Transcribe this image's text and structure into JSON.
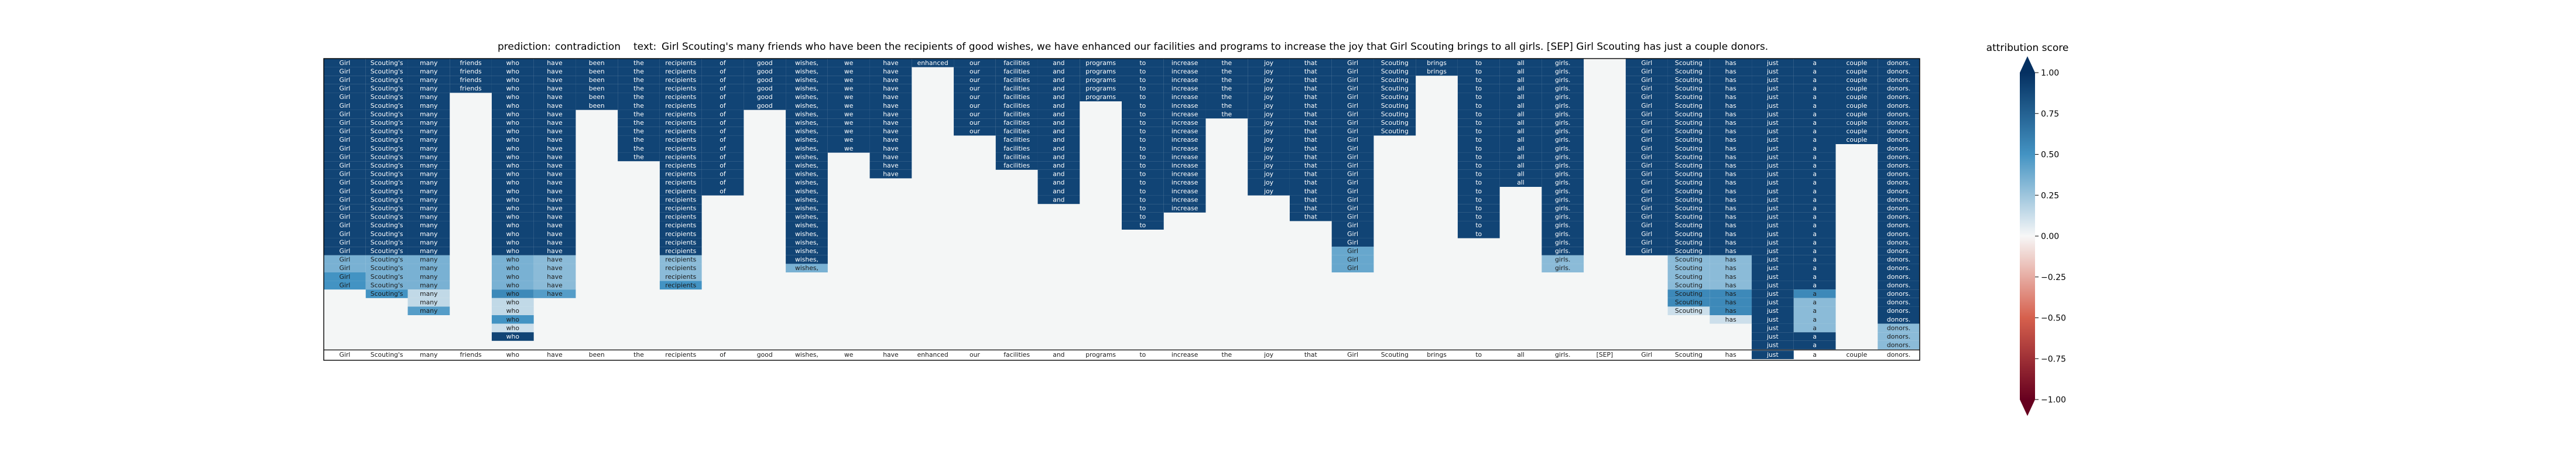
{
  "chart_data": {
    "type": "heatmap",
    "title": {
      "prediction_label": "prediction:",
      "prediction_value": "contradiction",
      "text_label": "text:",
      "text_value": "Girl Scouting's many friends who have been the recipients of good wishes, we have enhanced our facilities and programs to increase the joy that Girl Scouting brings to all girls. [SEP] Girl Scouting has just a couple donors."
    },
    "tokens": [
      "Girl",
      "Scouting's",
      "many",
      "friends",
      "who",
      "have",
      "been",
      "the",
      "recipients",
      "of",
      "good",
      "wishes,",
      "we",
      "have",
      "enhanced",
      "our",
      "facilities",
      "and",
      "programs",
      "to",
      "increase",
      "the",
      "joy",
      "that",
      "Girl",
      "Scouting",
      "brings",
      "to",
      "all",
      "girls.",
      "[SEP]",
      "Girl",
      "Scouting",
      "has",
      "just",
      "a",
      "couple",
      "donors."
    ],
    "rows": 34,
    "columns": [
      {
        "segments": [
          {
            "from": 0,
            "to": 22,
            "score": 0.9
          },
          {
            "from": 23,
            "to": 24,
            "score": 0.35
          },
          {
            "from": 25,
            "to": 26,
            "score": 0.5
          }
        ]
      },
      {
        "segments": [
          {
            "from": 0,
            "to": 22,
            "score": 0.9
          },
          {
            "from": 23,
            "to": 26,
            "score": 0.35
          },
          {
            "from": 27,
            "to": 27,
            "score": 0.5
          }
        ]
      },
      {
        "segments": [
          {
            "from": 0,
            "to": 22,
            "score": 0.9
          },
          {
            "from": 23,
            "to": 26,
            "score": 0.35
          },
          {
            "from": 27,
            "to": 28,
            "score": 0.15
          },
          {
            "from": 29,
            "to": 29,
            "score": 0.45
          }
        ]
      },
      {
        "segments": [
          {
            "from": 0,
            "to": 3,
            "score": 0.9
          }
        ]
      },
      {
        "segments": [
          {
            "from": 0,
            "to": 22,
            "score": 0.9
          },
          {
            "from": 23,
            "to": 26,
            "score": 0.35
          },
          {
            "from": 27,
            "to": 27,
            "score": 0.55
          },
          {
            "from": 28,
            "to": 29,
            "score": 0.15
          },
          {
            "from": 30,
            "to": 30,
            "score": 0.5
          },
          {
            "from": 31,
            "to": 31,
            "score": 0.12
          },
          {
            "from": 32,
            "to": 32,
            "score": 0.9
          }
        ]
      },
      {
        "segments": [
          {
            "from": 0,
            "to": 22,
            "score": 0.9
          },
          {
            "from": 23,
            "to": 26,
            "score": 0.3
          },
          {
            "from": 27,
            "to": 27,
            "score": 0.45
          }
        ]
      },
      {
        "segments": [
          {
            "from": 0,
            "to": 5,
            "score": 0.9
          }
        ]
      },
      {
        "segments": [
          {
            "from": 0,
            "to": 11,
            "score": 0.9
          }
        ]
      },
      {
        "segments": [
          {
            "from": 0,
            "to": 22,
            "score": 0.9
          },
          {
            "from": 23,
            "to": 25,
            "score": 0.3
          },
          {
            "from": 26,
            "to": 26,
            "score": 0.5
          }
        ]
      },
      {
        "segments": [
          {
            "from": 0,
            "to": 15,
            "score": 0.9
          }
        ]
      },
      {
        "segments": [
          {
            "from": 0,
            "to": 5,
            "score": 0.9
          }
        ]
      },
      {
        "segments": [
          {
            "from": 0,
            "to": 23,
            "score": 0.9
          },
          {
            "from": 24,
            "to": 24,
            "score": 0.35
          }
        ]
      },
      {
        "segments": [
          {
            "from": 0,
            "to": 10,
            "score": 0.9
          }
        ]
      },
      {
        "segments": [
          {
            "from": 0,
            "to": 13,
            "score": 0.9
          }
        ]
      },
      {
        "segments": [
          {
            "from": 0,
            "to": 0,
            "score": 0.9
          }
        ]
      },
      {
        "segments": [
          {
            "from": 0,
            "to": 8,
            "score": 0.9
          }
        ]
      },
      {
        "segments": [
          {
            "from": 0,
            "to": 12,
            "score": 0.9
          }
        ]
      },
      {
        "segments": [
          {
            "from": 0,
            "to": 16,
            "score": 0.9
          }
        ]
      },
      {
        "segments": [
          {
            "from": 0,
            "to": 4,
            "score": 0.9
          }
        ]
      },
      {
        "segments": [
          {
            "from": 0,
            "to": 19,
            "score": 0.9
          }
        ]
      },
      {
        "segments": [
          {
            "from": 0,
            "to": 17,
            "score": 0.9
          }
        ]
      },
      {
        "segments": [
          {
            "from": 0,
            "to": 6,
            "score": 0.9
          }
        ]
      },
      {
        "segments": [
          {
            "from": 0,
            "to": 15,
            "score": 0.9
          }
        ]
      },
      {
        "segments": [
          {
            "from": 0,
            "to": 18,
            "score": 0.9
          }
        ]
      },
      {
        "segments": [
          {
            "from": 0,
            "to": 21,
            "score": 0.9
          },
          {
            "from": 22,
            "to": 24,
            "score": 0.4
          }
        ]
      },
      {
        "segments": [
          {
            "from": 0,
            "to": 8,
            "score": 0.9
          }
        ]
      },
      {
        "segments": [
          {
            "from": 0,
            "to": 1,
            "score": 0.9
          }
        ]
      },
      {
        "segments": [
          {
            "from": 0,
            "to": 20,
            "score": 0.9
          }
        ]
      },
      {
        "segments": [
          {
            "from": 0,
            "to": 14,
            "score": 0.9
          }
        ]
      },
      {
        "segments": [
          {
            "from": 0,
            "to": 22,
            "score": 0.9
          },
          {
            "from": 23,
            "to": 24,
            "score": 0.3
          }
        ]
      },
      {
        "segments": []
      },
      {
        "segments": [
          {
            "from": 0,
            "to": 22,
            "score": 0.9
          }
        ]
      },
      {
        "segments": [
          {
            "from": 0,
            "to": 22,
            "score": 0.9
          },
          {
            "from": 23,
            "to": 26,
            "score": 0.3
          },
          {
            "from": 27,
            "to": 28,
            "score": 0.55
          },
          {
            "from": 29,
            "to": 29,
            "score": 0.12
          }
        ]
      },
      {
        "segments": [
          {
            "from": 0,
            "to": 22,
            "score": 0.9
          },
          {
            "from": 23,
            "to": 26,
            "score": 0.3
          },
          {
            "from": 27,
            "to": 29,
            "score": 0.55
          },
          {
            "from": 30,
            "to": 30,
            "score": 0.12
          }
        ]
      },
      {
        "segments": [
          {
            "from": 0,
            "to": 33,
            "score": 0.9
          }
        ]
      },
      {
        "segments": [
          {
            "from": 0,
            "to": 26,
            "score": 0.9
          },
          {
            "from": 27,
            "to": 27,
            "score": 0.55
          },
          {
            "from": 28,
            "to": 31,
            "score": 0.3
          },
          {
            "from": 32,
            "to": 33,
            "score": 0.9
          }
        ]
      },
      {
        "segments": [
          {
            "from": 0,
            "to": 9,
            "score": 0.9
          }
        ]
      },
      {
        "segments": [
          {
            "from": 0,
            "to": 30,
            "score": 0.9
          },
          {
            "from": 31,
            "to": 33,
            "score": 0.3
          }
        ]
      }
    ],
    "baseline_row": {
      "highlight_index": 34,
      "highlight_score": 0.9
    },
    "colorbar": {
      "label": "attribution score",
      "range": [
        -1.0,
        1.0
      ],
      "ticks": [
        "1.00",
        "0.75",
        "0.50",
        "0.25",
        "0.00",
        "−0.25",
        "−0.50",
        "−0.75",
        "−1.00"
      ],
      "colors": {
        "neg": "#67001f",
        "neg_mid": "#d6604d",
        "mid": "#f7f7f7",
        "pos_mid": "#4393c3",
        "pos": "#053061"
      }
    }
  }
}
